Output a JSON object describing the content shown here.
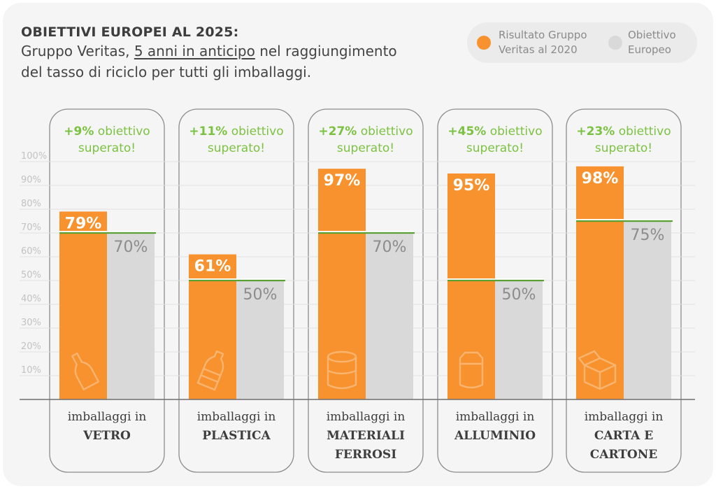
{
  "title": {
    "line1": "OBIETTIVI EUROPEI AL 2025:",
    "line2_prefix": "Gruppo Veritas, ",
    "line2_link": "5 anni in anticipo",
    "line2_suffix": " nel raggiungimento",
    "line3": "del tasso di riciclo per tutti gli imballaggi."
  },
  "legend": {
    "result": {
      "line1": "Risultato Gruppo",
      "line2": "Veritas al 2020",
      "color": "#f7922e"
    },
    "target": {
      "line1": "Obiettivo",
      "line2": "Europeo",
      "color": "#d9d9d9"
    }
  },
  "chart_data": {
    "type": "bar",
    "title": "OBIETTIVI EUROPEI AL 2025:",
    "ylim": [
      0,
      100
    ],
    "yticks": [
      "10%",
      "20%",
      "30%",
      "40%",
      "50%",
      "60%",
      "70%",
      "80%",
      "90%",
      "100%"
    ],
    "grid": true,
    "legend_position": "top-right",
    "categories": [
      {
        "label_top": "imballaggi in",
        "label_bold": [
          "VETRO"
        ],
        "icon": "glass-bottle-icon",
        "delta": "+9%",
        "delta_text": " obiettivo",
        "delta_text2": "superato!"
      },
      {
        "label_top": "imballaggi in",
        "label_bold": [
          "PLASTICA"
        ],
        "icon": "plastic-bottle-icon",
        "delta": "+11%",
        "delta_text": " obiettivo",
        "delta_text2": "superato!"
      },
      {
        "label_top": "imballaggi in",
        "label_bold": [
          "MATERIALI",
          "FERROSI"
        ],
        "icon": "tin-can-icon",
        "delta": "+27%",
        "delta_text": " obiettivo",
        "delta_text2": "superato!"
      },
      {
        "label_top": "imballaggi in",
        "label_bold": [
          "ALLUMINIO"
        ],
        "icon": "aluminium-can-icon",
        "delta": "+45%",
        "delta_text": " obiettivo",
        "delta_text2": "superato!"
      },
      {
        "label_top": "imballaggi in",
        "label_bold": [
          "CARTA E",
          "CARTONE"
        ],
        "icon": "cardboard-box-icon",
        "delta": "+23%",
        "delta_text": " obiettivo",
        "delta_text2": "superato!"
      }
    ],
    "series": [
      {
        "name": "Risultato Gruppo Veritas al 2020",
        "values": [
          79,
          61,
          97,
          95,
          98
        ],
        "labels": [
          "79%",
          "61%",
          "97%",
          "95%",
          "98%"
        ],
        "color": "#f7922e"
      },
      {
        "name": "Obiettivo Europeo",
        "values": [
          70,
          50,
          70,
          50,
          75
        ],
        "labels": [
          "70%",
          "50%",
          "70%",
          "50%",
          "75%"
        ],
        "color": "#d9d9d9"
      }
    ],
    "accent_color": "#7cc242",
    "target_line_color": "#5aa032"
  }
}
